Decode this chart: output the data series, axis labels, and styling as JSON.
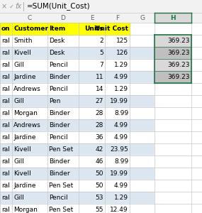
{
  "formula_bar_text": "=SUM(Unit_Cost)",
  "table_headers": [
    "on",
    "Customer",
    "Item",
    "Units",
    "Unit Cost"
  ],
  "table_header_bg": "#FFFF00",
  "rows": [
    [
      "ral",
      "Smith",
      "Desk",
      "2",
      "125"
    ],
    [
      "ral",
      "Kivell",
      "Desk",
      "5",
      "126"
    ],
    [
      "ral",
      "Gill",
      "Pencil",
      "7",
      "1.29"
    ],
    [
      "ral",
      "Jardine",
      "Binder",
      "11",
      "4.99"
    ],
    [
      "ral",
      "Andrews",
      "Pencil",
      "14",
      "1.29"
    ],
    [
      "ral",
      "Gill",
      "Pen",
      "27",
      "19.99"
    ],
    [
      "ral",
      "Morgan",
      "Binder",
      "28",
      "8.99"
    ],
    [
      "ral",
      "Andrews",
      "Binder",
      "28",
      "4.99"
    ],
    [
      "ral",
      "Jardine",
      "Pencil",
      "36",
      "4.99"
    ],
    [
      "ral",
      "Kivell",
      "Pen Set",
      "42",
      "23.95"
    ],
    [
      "ral",
      "Gill",
      "Binder",
      "46",
      "8.99"
    ],
    [
      "ral",
      "Kivell",
      "Binder",
      "50",
      "19.99"
    ],
    [
      "ral",
      "Jardine",
      "Pen Set",
      "50",
      "4.99"
    ],
    [
      "ral",
      "Gill",
      "Pencil",
      "53",
      "1.29"
    ],
    [
      "ral",
      "Morgan",
      "Pen Set",
      "55",
      "12.49"
    ]
  ],
  "h_values": [
    "369.23",
    "369.23",
    "369.23",
    "369.23"
  ],
  "h_border_color": "#217346",
  "h_selected_bg1": "#d9d9d9",
  "h_selected_bg2": "#bfbfbf",
  "h_header_bg": "#d9d9d9",
  "row_colors": [
    "#ffffff",
    "#dce6f1"
  ],
  "grid_color": "#c8c8c8",
  "formula_bar_bg": "#f2f2f2",
  "col_header_bg": "#f2f2f2",
  "col_header_text": "#606060",
  "font_size": 6.5,
  "formula_font_size": 7.5
}
